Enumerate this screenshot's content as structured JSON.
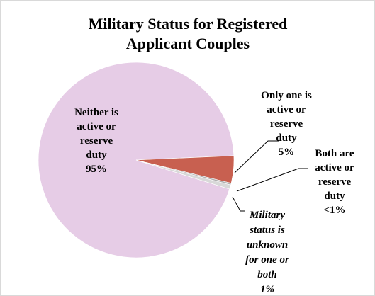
{
  "chart_data": {
    "type": "pie",
    "title": "Military Status for Registered Applicant Couples",
    "title_lines": [
      "Military Status for Registered",
      "Applicant Couples"
    ],
    "slices": [
      {
        "key": "neither",
        "label_lines": [
          "Neither is",
          "active or",
          "reserve",
          "duty"
        ],
        "percent_label": "95%",
        "value": 94.5,
        "color": "#e6cce6"
      },
      {
        "key": "one",
        "label_lines": [
          "Only one is",
          "active or",
          "reserve",
          "duty"
        ],
        "percent_label": "5%",
        "value": 4.5,
        "color": "#c86050"
      },
      {
        "key": "both",
        "label_lines": [
          "Both are",
          "active or",
          "reserve",
          "duty"
        ],
        "percent_label": "<1%",
        "value": 0.3,
        "color": "#b0b0b0"
      },
      {
        "key": "unknown",
        "label_lines": [
          "Military",
          "status is",
          "unknown",
          "for one or",
          "both"
        ],
        "percent_label": "1%",
        "value": 0.7,
        "color": "#d8d8d8"
      }
    ],
    "legend": "none"
  }
}
